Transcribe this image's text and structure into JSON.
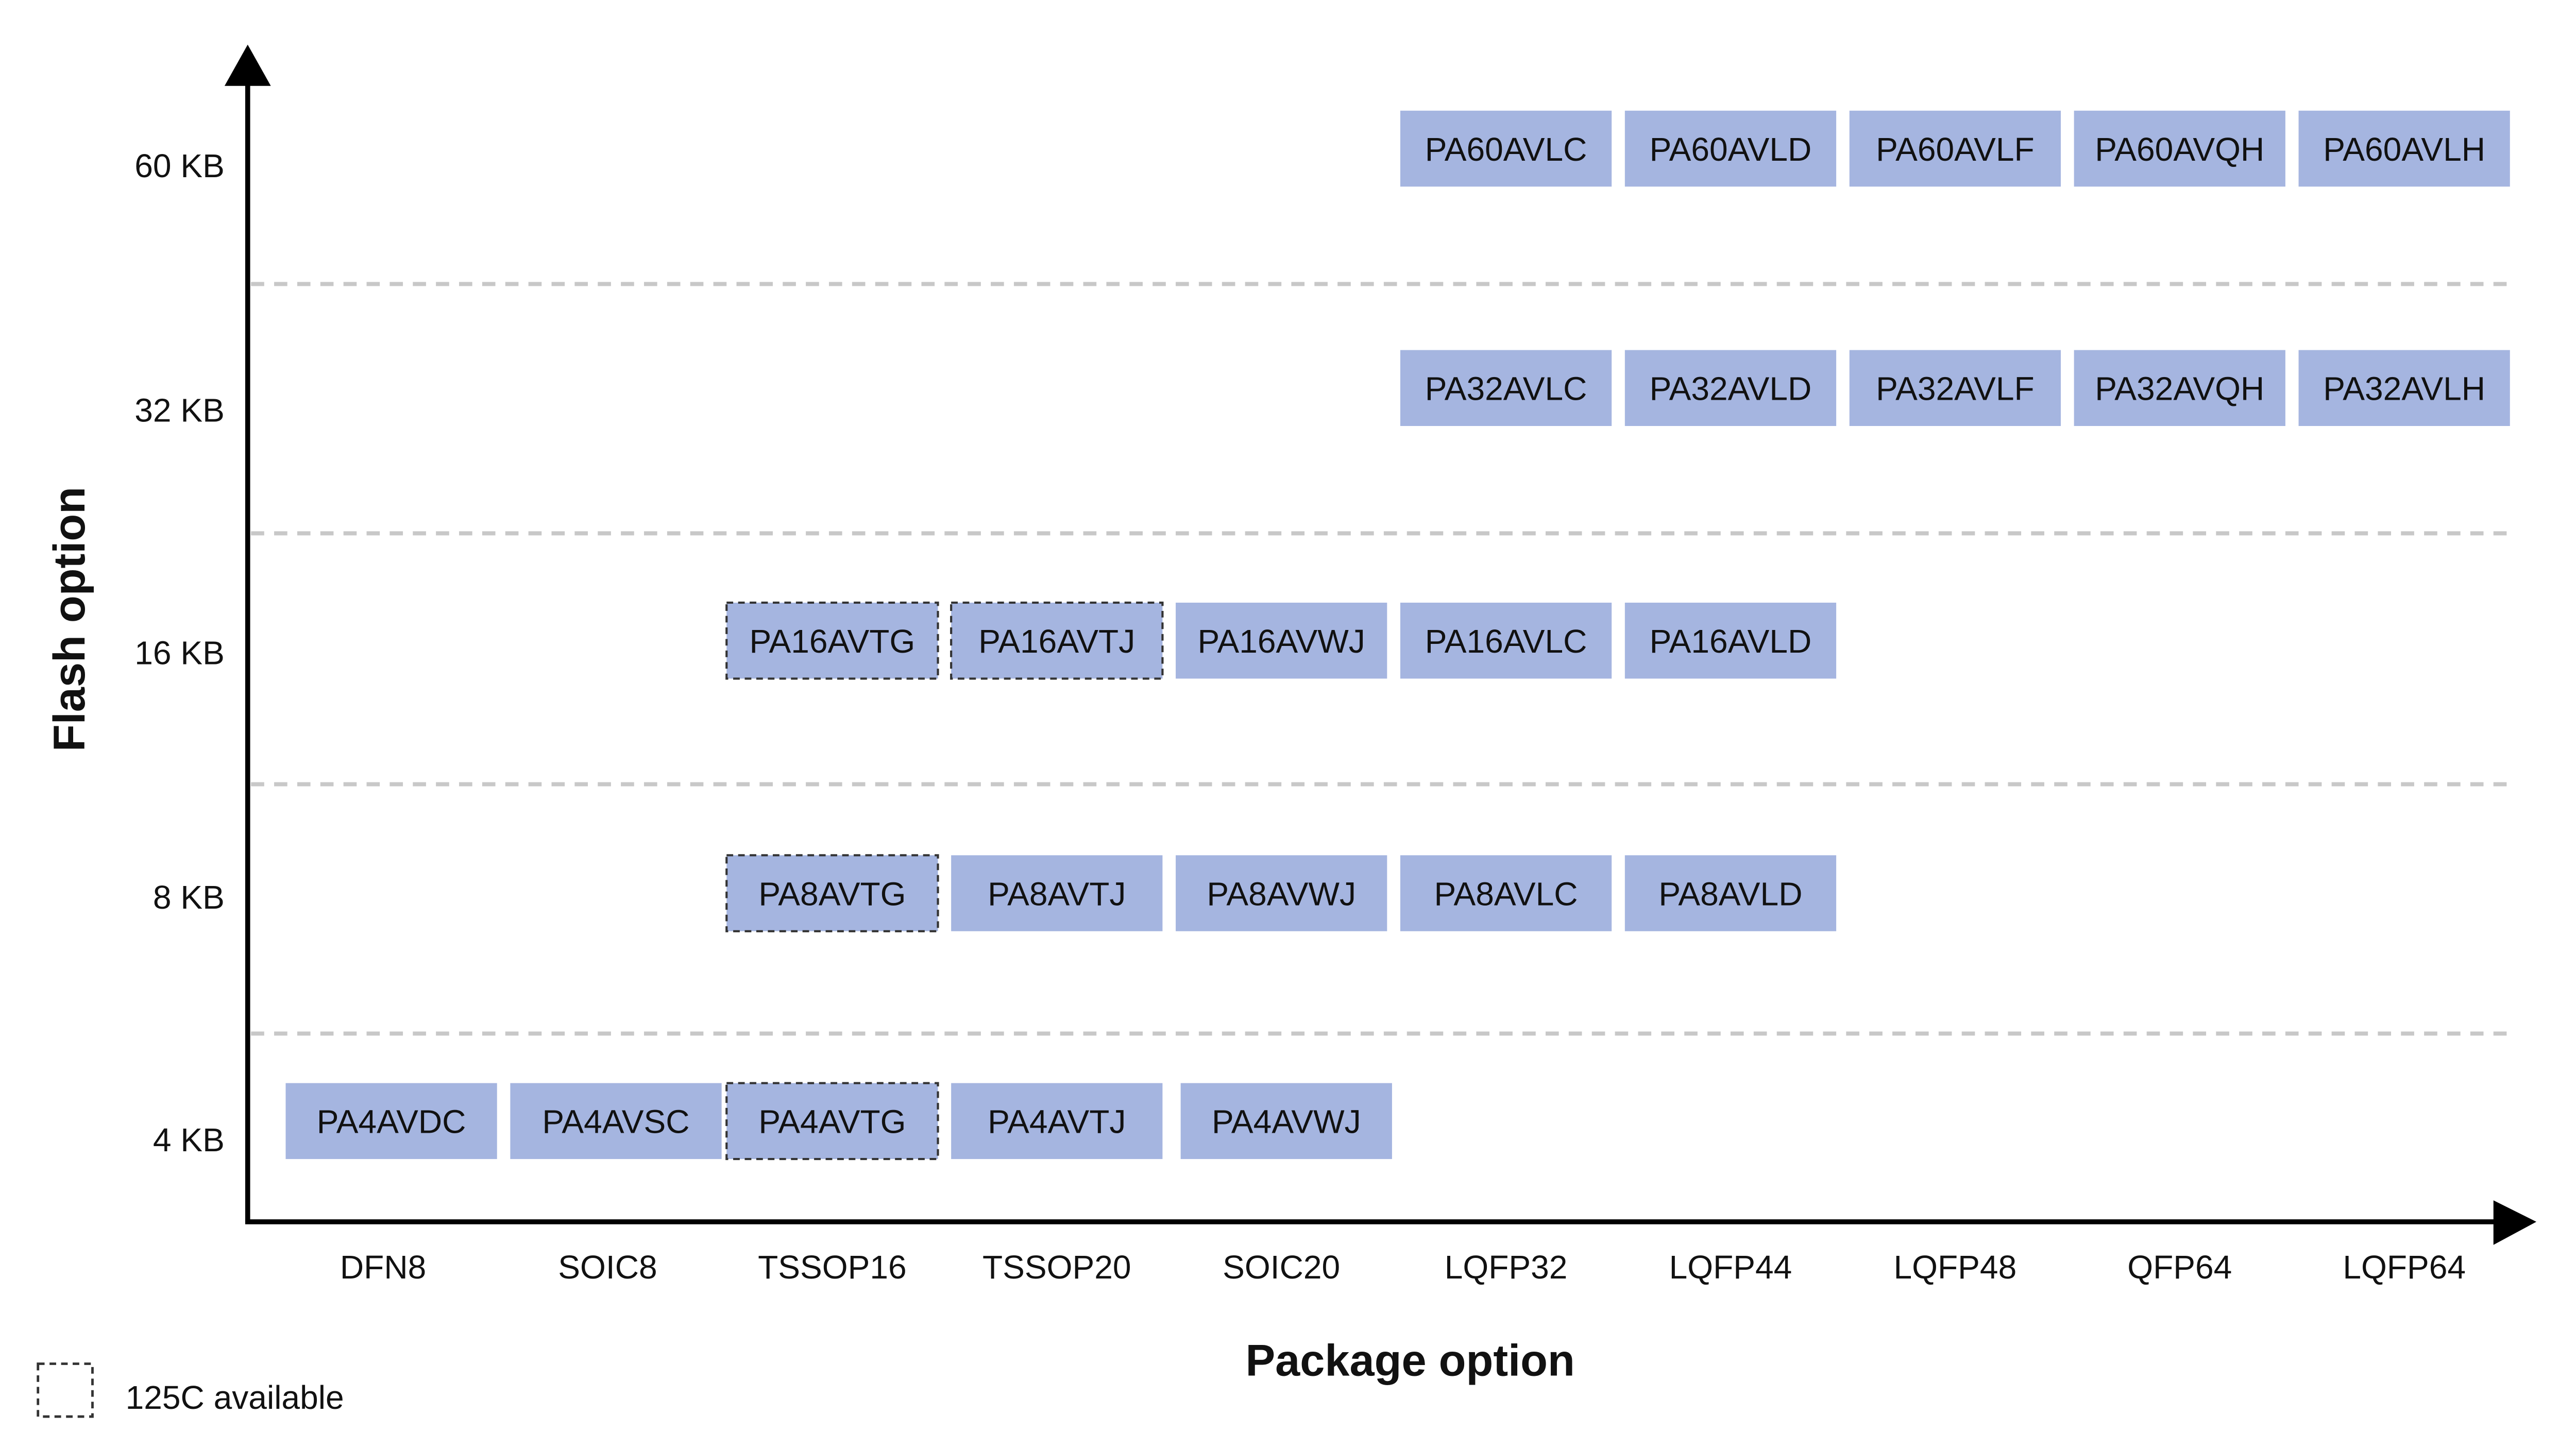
{
  "axis": {
    "y_title": "Flash option",
    "x_title": "Package option"
  },
  "columns": [
    "DFN8",
    "SOIC8",
    "TSSOP16",
    "TSSOP20",
    "SOIC20",
    "LQFP32",
    "LQFP44",
    "LQFP48",
    "QFP64",
    "LQFP64"
  ],
  "rows": [
    {
      "label": "60 KB",
      "cells": [
        null,
        null,
        null,
        null,
        null,
        {
          "part": "PA60AVLC",
          "temp_125c": false
        },
        {
          "part": "PA60AVLD",
          "temp_125c": false
        },
        {
          "part": "PA60AVLF",
          "temp_125c": false
        },
        {
          "part": "PA60AVQH",
          "temp_125c": false
        },
        {
          "part": "PA60AVLH",
          "temp_125c": false
        }
      ]
    },
    {
      "label": "32 KB",
      "cells": [
        null,
        null,
        null,
        null,
        null,
        {
          "part": "PA32AVLC",
          "temp_125c": false
        },
        {
          "part": "PA32AVLD",
          "temp_125c": false
        },
        {
          "part": "PA32AVLF",
          "temp_125c": false
        },
        {
          "part": "PA32AVQH",
          "temp_125c": false
        },
        {
          "part": "PA32AVLH",
          "temp_125c": false
        }
      ]
    },
    {
      "label": "16 KB",
      "cells": [
        null,
        null,
        {
          "part": "PA16AVTG",
          "temp_125c": true
        },
        {
          "part": "PA16AVTJ",
          "temp_125c": true
        },
        {
          "part": "PA16AVWJ",
          "temp_125c": false
        },
        {
          "part": "PA16AVLC",
          "temp_125c": false
        },
        {
          "part": "PA16AVLD",
          "temp_125c": false
        },
        null,
        null,
        null
      ]
    },
    {
      "label": "8 KB",
      "cells": [
        null,
        null,
        {
          "part": "PA8AVTG",
          "temp_125c": true
        },
        {
          "part": "PA8AVTJ",
          "temp_125c": false
        },
        {
          "part": "PA8AVWJ",
          "temp_125c": false
        },
        {
          "part": "PA8AVLC",
          "temp_125c": false
        },
        {
          "part": "PA8AVLD",
          "temp_125c": false
        },
        null,
        null,
        null
      ]
    },
    {
      "label": "4 KB",
      "cells": [
        {
          "part": "PA4AVDC",
          "temp_125c": false
        },
        {
          "part": "PA4AVSC",
          "temp_125c": false
        },
        {
          "part": "PA4AVTG",
          "temp_125c": true
        },
        {
          "part": "PA4AVTJ",
          "temp_125c": false
        },
        {
          "part": "PA4AVWJ",
          "temp_125c": false
        },
        null,
        null,
        null,
        null,
        null
      ]
    }
  ],
  "legend": {
    "label": "125C available"
  }
}
